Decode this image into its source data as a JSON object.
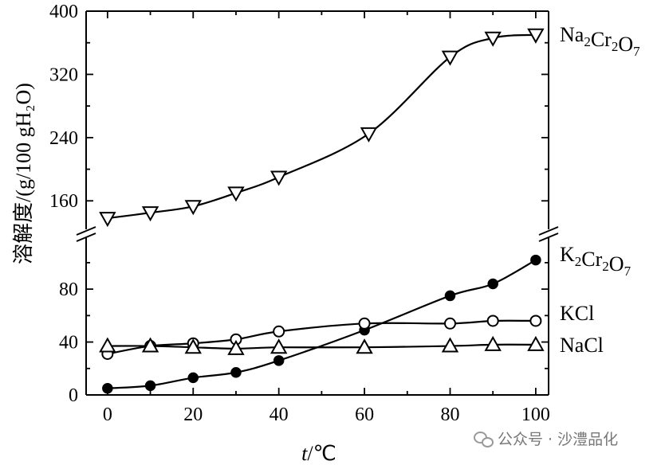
{
  "chart_data": {
    "type": "line",
    "xlabel_var": "t",
    "xlabel_unit": "/℃",
    "ylabel": "溶解度/(g/100 gH₂O)",
    "x_ticks": [
      0,
      20,
      40,
      60,
      80,
      100
    ],
    "y_ticks_lower": [
      0,
      40,
      80
    ],
    "y_ticks_upper": [
      160,
      240,
      320,
      400
    ],
    "xlim": [
      -5,
      103
    ],
    "y_lower_range": [
      0,
      118
    ],
    "y_upper_range": [
      126,
      400
    ],
    "axis_break": true,
    "series": [
      {
        "name": "Na2Cr2O7",
        "label_main": [
          "Na",
          "Cr",
          "O"
        ],
        "label_sub": [
          "2",
          "2",
          "7"
        ],
        "marker": "triangle-down-open",
        "x": [
          0,
          10,
          20,
          30,
          40,
          61,
          80,
          90,
          100
        ],
        "y": [
          138,
          145,
          153,
          170,
          190,
          245,
          342,
          366,
          370
        ]
      },
      {
        "name": "K2Cr2O7",
        "label_main": [
          "K",
          "Cr",
          "O"
        ],
        "label_sub": [
          "2",
          "2",
          "7"
        ],
        "marker": "circle-filled",
        "x": [
          0,
          10,
          20,
          30,
          40,
          60,
          80,
          90,
          100
        ],
        "y": [
          5,
          7,
          13,
          17,
          26,
          49,
          75,
          84,
          102
        ]
      },
      {
        "name": "KCl",
        "label_main": [
          "KCl"
        ],
        "label_sub": [],
        "marker": "circle-open",
        "x": [
          0,
          10,
          20,
          30,
          40,
          60,
          80,
          90,
          100
        ],
        "y": [
          31,
          37,
          39,
          42,
          48,
          54,
          54,
          56,
          56
        ]
      },
      {
        "name": "NaCl",
        "label_main": [
          "NaCl"
        ],
        "label_sub": [],
        "marker": "triangle-up-open",
        "x": [
          0,
          10,
          20,
          30,
          40,
          60,
          80,
          90,
          100
        ],
        "y": [
          37,
          37,
          36,
          35,
          36,
          36,
          37,
          38,
          38
        ]
      }
    ]
  },
  "watermark": {
    "text": "公众号 · 沙澧品化",
    "icon": "wechat-icon"
  }
}
